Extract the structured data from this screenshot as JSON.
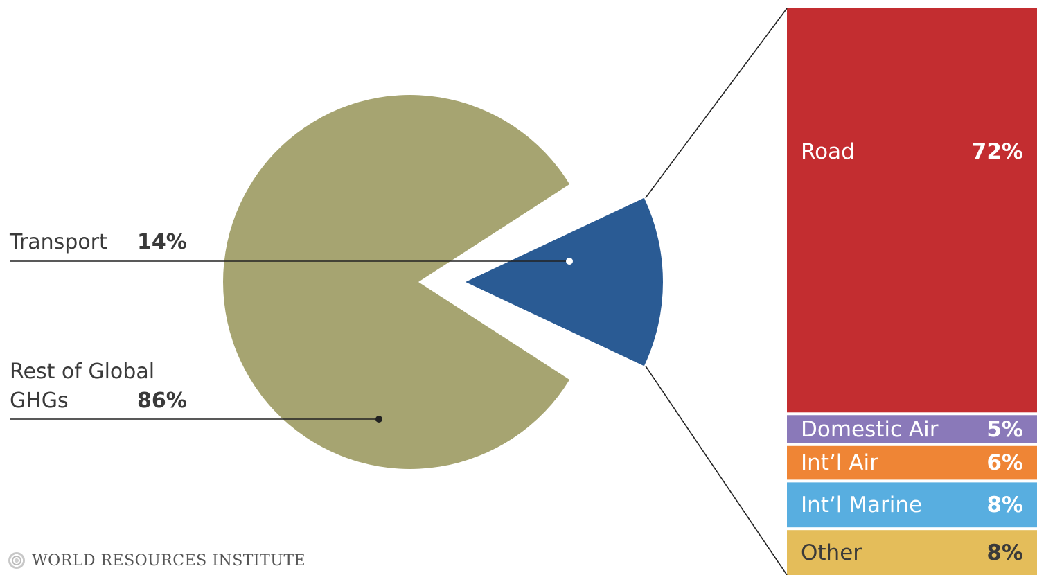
{
  "chart_data": [
    {
      "type": "pie",
      "slices": [
        {
          "label_lines": [
            "Transport"
          ],
          "value": 14,
          "value_text": "14%",
          "color": "#2a5b94",
          "exploded": true
        },
        {
          "label_lines": [
            "Rest of Global",
            "GHGs"
          ],
          "value": 86,
          "value_text": "86%",
          "color": "#a6a471"
        }
      ]
    },
    {
      "type": "bar",
      "stacked": true,
      "segments": [
        {
          "label": "Road",
          "value": 72,
          "value_text": "72%",
          "color": "#c32d30"
        },
        {
          "label": "Domestic Air",
          "value": 5,
          "value_text": "5%",
          "color": "#8a79b9"
        },
        {
          "label": "Int’l Air",
          "value": 6,
          "value_text": "6%",
          "color": "#ef8535"
        },
        {
          "label": "Int’l Marine",
          "value": 8,
          "value_text": "8%",
          "color": "#58aee0"
        },
        {
          "label": "Other",
          "value": 8,
          "value_text": "8%",
          "color": "#e4bd5a"
        }
      ]
    }
  ],
  "source": {
    "text": "WORLD RESOURCES INSTITUTE",
    "logo_icon": "wri-logo-icon"
  }
}
